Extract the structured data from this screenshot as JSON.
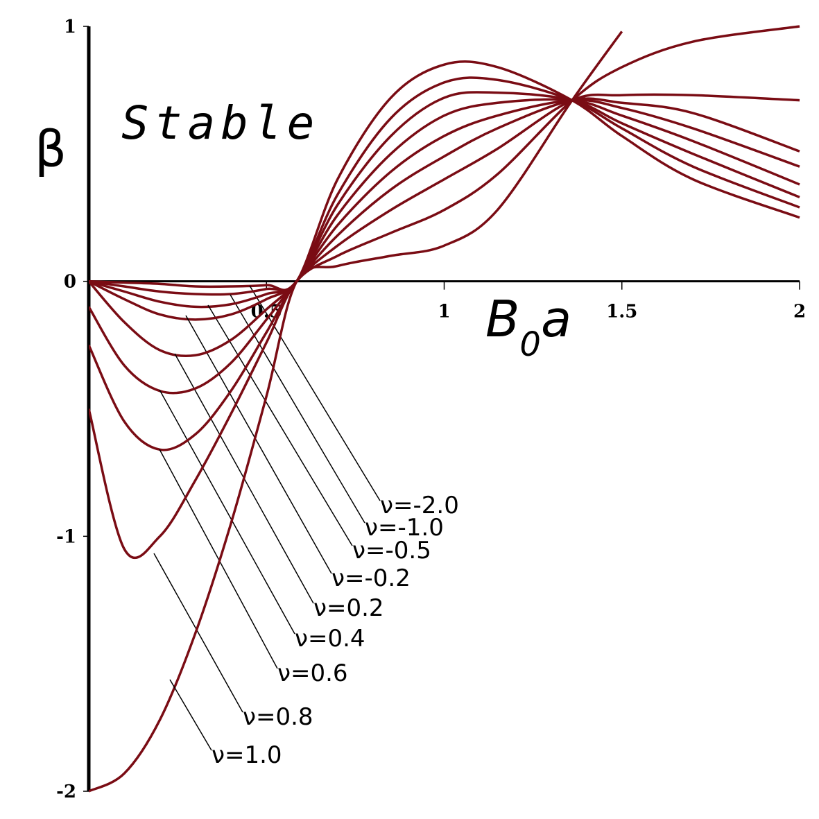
{
  "chart_data": {
    "type": "line",
    "annotation": "Stable",
    "ylabel": "β",
    "xlabel": {
      "base": "B",
      "sub": "0",
      "tail": "a"
    },
    "x": [
      0,
      0.1,
      0.2,
      0.3,
      0.4,
      0.5,
      0.585,
      0.7,
      0.85,
      1,
      1.15,
      1.36,
      1.5,
      1.7,
      2
    ],
    "xlim": [
      0,
      2
    ],
    "ylim": [
      -2,
      1
    ],
    "xticks": [
      0.5,
      1,
      1.5,
      2
    ],
    "yticks": [
      -2,
      -1,
      0,
      1
    ],
    "series": [
      {
        "name": "ν=-2.0",
        "color": "#7a0c14",
        "values": [
          0,
          -0.005,
          -0.01,
          -0.02,
          -0.02,
          -0.015,
          0,
          0.4,
          0.72,
          0.85,
          0.84,
          0.71,
          0.57,
          0.4,
          0.25
        ]
      },
      {
        "name": "ν=-1.0",
        "color": "#7a0c14",
        "values": [
          0,
          -0.02,
          -0.04,
          -0.05,
          -0.05,
          -0.03,
          0,
          0.34,
          0.64,
          0.78,
          0.79,
          0.71,
          0.6,
          0.45,
          0.29
        ]
      },
      {
        "name": "ν=-0.5",
        "color": "#7a0c14",
        "values": [
          0,
          -0.04,
          -0.08,
          -0.1,
          -0.09,
          -0.05,
          0,
          0.3,
          0.57,
          0.72,
          0.74,
          0.71,
          0.62,
          0.5,
          0.33
        ]
      },
      {
        "name": "ν=-0.2",
        "color": "#7a0c14",
        "values": [
          0,
          -0.07,
          -0.13,
          -0.15,
          -0.13,
          -0.07,
          0,
          0.26,
          0.5,
          0.65,
          0.7,
          0.71,
          0.65,
          0.55,
          0.38
        ]
      },
      {
        "name": "ν=0.2",
        "color": "#7a0c14",
        "values": [
          0,
          -0.16,
          -0.27,
          -0.29,
          -0.23,
          -0.11,
          0,
          0.22,
          0.43,
          0.57,
          0.65,
          0.71,
          0.68,
          0.6,
          0.45
        ]
      },
      {
        "name": "ν=0.4",
        "color": "#7a0c14",
        "values": [
          -0.1,
          -0.33,
          -0.43,
          -0.42,
          -0.32,
          -0.15,
          0,
          0.18,
          0.36,
          0.49,
          0.6,
          0.71,
          0.7,
          0.66,
          0.51
        ]
      },
      {
        "name": "ν=0.6",
        "color": "#7a0c14",
        "values": [
          -0.25,
          -0.55,
          -0.66,
          -0.6,
          -0.43,
          -0.2,
          0,
          0.14,
          0.28,
          0.4,
          0.52,
          0.71,
          0.73,
          0.73,
          0.71
        ]
      },
      {
        "name": "ν=0.8",
        "color": "#7a0c14",
        "values": [
          -0.5,
          -1.05,
          -1.0,
          -0.78,
          -0.52,
          -0.24,
          0,
          0.1,
          0.19,
          0.28,
          0.42,
          0.71,
          0.84,
          0.94,
          1.0
        ]
      },
      {
        "name": "ν=1.0",
        "color": "#7a0c14",
        "values": [
          -2,
          -1.93,
          -1.72,
          -1.38,
          -0.95,
          -0.45,
          0,
          0.06,
          0.1,
          0.14,
          0.28,
          0.71,
          0.98,
          null,
          null
        ]
      }
    ]
  }
}
